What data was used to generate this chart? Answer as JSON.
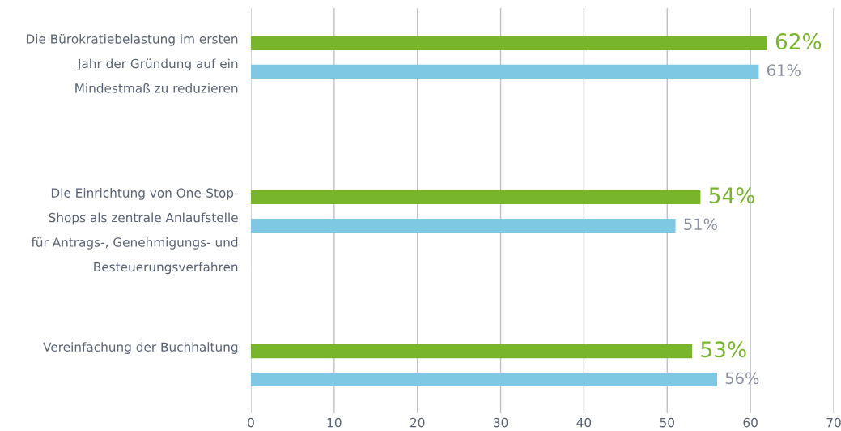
{
  "chart_data": {
    "type": "bar",
    "orientation": "horizontal",
    "categories": [
      "Die Bürokratiebelastung im ersten\nJahr der Gründung auf ein\nMindestmaß zu reduzieren",
      "Die Einrichtung von One-Stop-\nShops als zentrale Anlaufstelle\nfür Antrags-, Genehmigungs- und\nBesteuerungsverfahren",
      "Vereinfachung der Buchhaltung"
    ],
    "series": [
      {
        "color": "#78b52a",
        "values": [
          62,
          54,
          53
        ],
        "value_labels": [
          "62%",
          "54%",
          "53%"
        ]
      },
      {
        "color": "#7ec8e3",
        "values": [
          61,
          51,
          56
        ],
        "value_labels": [
          "61%",
          "51%",
          "56%"
        ]
      }
    ],
    "xlim": [
      0,
      70
    ],
    "xticks": [
      0,
      10,
      20,
      30,
      40,
      50,
      60,
      70
    ],
    "grid": "x"
  }
}
